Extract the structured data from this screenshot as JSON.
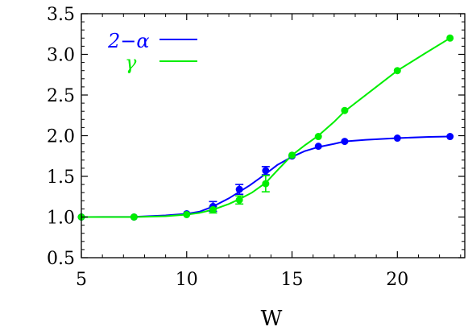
{
  "chart_data": {
    "type": "line",
    "title": "",
    "xlabel": "W",
    "ylabel": "",
    "xlim": [
      5,
      23.2
    ],
    "ylim": [
      0.5,
      3.5
    ],
    "xticks": [
      5,
      10,
      15,
      20
    ],
    "xtick_labels": [
      "5",
      "10",
      "15",
      "20"
    ],
    "yticks": [
      0.5,
      1.0,
      1.5,
      2.0,
      2.5,
      3.0,
      3.5
    ],
    "ytick_labels": [
      "0.5",
      "1.0",
      "1.5",
      "2.0",
      "2.5",
      "3.0",
      "3.5"
    ],
    "grid": false,
    "legend_position": "top-left",
    "series": [
      {
        "name": "2−α",
        "color": "#0000ff",
        "x": [
          5,
          7.5,
          10,
          11.25,
          12.5,
          13.75,
          15,
          16.25,
          17.5,
          20,
          22.5
        ],
        "y": [
          1.0,
          1.0,
          1.04,
          1.13,
          1.34,
          1.57,
          1.75,
          1.87,
          1.93,
          1.97,
          1.99
        ],
        "err": [
          0,
          0,
          0,
          0.06,
          0.06,
          0.05,
          0,
          0,
          0,
          0,
          0
        ],
        "curve": [
          [
            5,
            1.0
          ],
          [
            7.5,
            1.003
          ],
          [
            9,
            1.02
          ],
          [
            10,
            1.04
          ],
          [
            10.6,
            1.065
          ],
          [
            11.25,
            1.13
          ],
          [
            12,
            1.23
          ],
          [
            12.5,
            1.31
          ],
          [
            13,
            1.39
          ],
          [
            13.75,
            1.53
          ],
          [
            14.3,
            1.64
          ],
          [
            15,
            1.74
          ],
          [
            15.6,
            1.81
          ],
          [
            16.25,
            1.86
          ],
          [
            17,
            1.9
          ],
          [
            17.5,
            1.93
          ],
          [
            18.5,
            1.95
          ],
          [
            20,
            1.97
          ],
          [
            21.5,
            1.985
          ],
          [
            22.5,
            1.99
          ]
        ]
      },
      {
        "name": "γ",
        "color": "#00ee00",
        "x": [
          5,
          7.5,
          10,
          11.25,
          12.5,
          13.75,
          15,
          16.25,
          17.5,
          20,
          22.5
        ],
        "y": [
          1.0,
          1.0,
          1.03,
          1.09,
          1.21,
          1.41,
          1.76,
          1.99,
          2.31,
          2.8,
          3.2
        ],
        "err": [
          0,
          0,
          0,
          0.04,
          0.05,
          0.1,
          0,
          0,
          0,
          0,
          0
        ],
        "curve": [
          [
            5,
            1.0
          ],
          [
            7.5,
            1.0
          ],
          [
            9,
            1.01
          ],
          [
            10,
            1.03
          ],
          [
            10.6,
            1.05
          ],
          [
            11.25,
            1.09
          ],
          [
            12,
            1.16
          ],
          [
            12.5,
            1.22
          ],
          [
            13.1,
            1.3
          ],
          [
            13.75,
            1.42
          ],
          [
            14.4,
            1.6
          ],
          [
            15,
            1.76
          ],
          [
            15.6,
            1.88
          ],
          [
            16.25,
            2.0
          ],
          [
            17,
            2.17
          ],
          [
            17.5,
            2.3
          ],
          [
            18.8,
            2.56
          ],
          [
            20,
            2.8
          ],
          [
            21.3,
            3.01
          ],
          [
            22.5,
            3.2
          ]
        ]
      }
    ]
  }
}
